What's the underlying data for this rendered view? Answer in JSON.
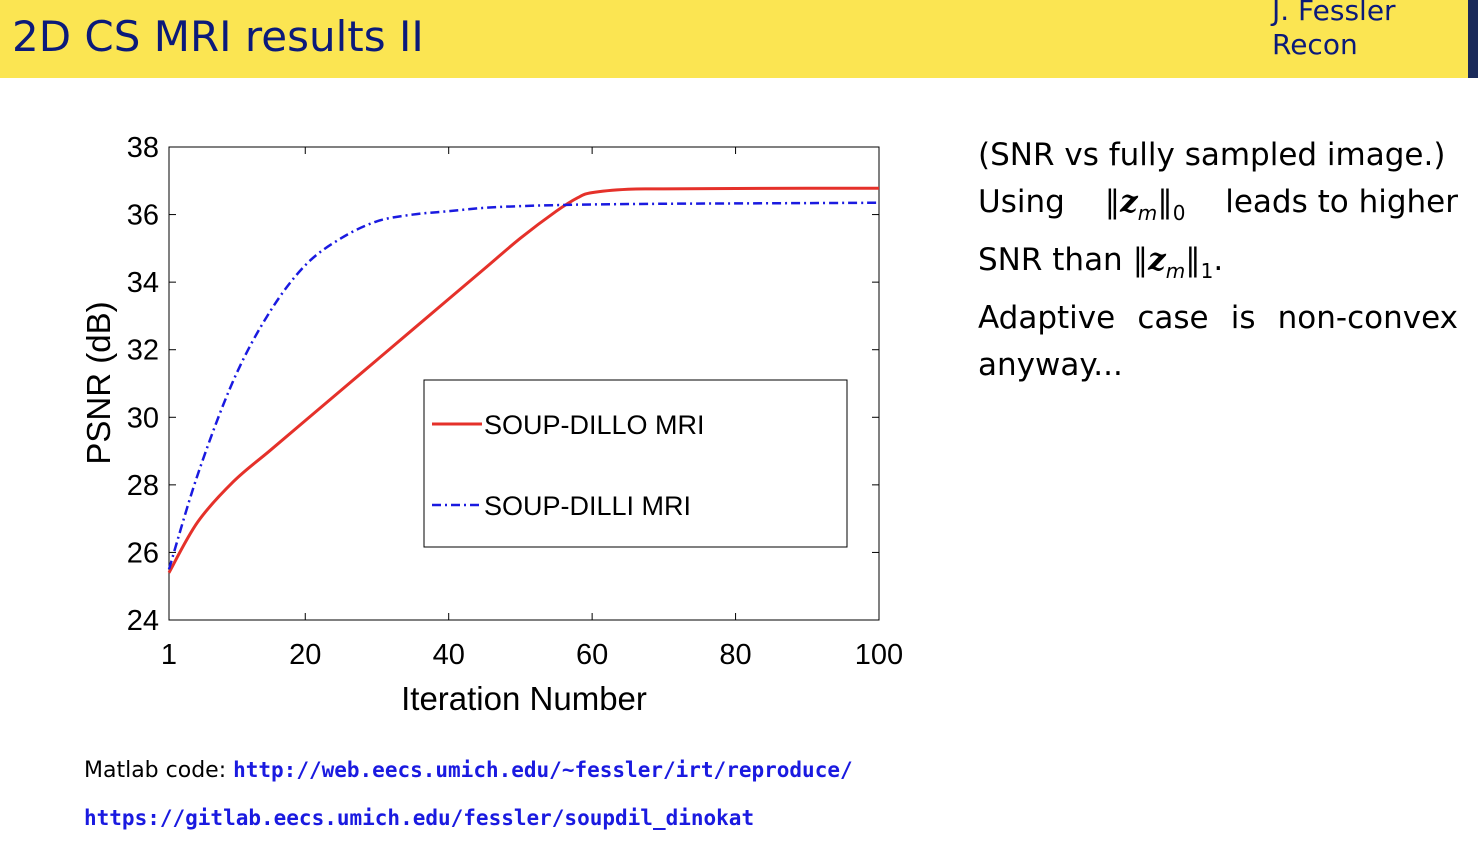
{
  "header": {
    "title": "2D CS MRI results II",
    "author": "J. Fessler",
    "section": "Recon",
    "colors": {
      "bar": "#fbe552",
      "text": "#0b1a7a"
    }
  },
  "text": {
    "line1": "(SNR vs fully sampled image.)",
    "line2_pre": "Using",
    "line2_post": "leads to higher",
    "line3_pre": "SNR than",
    "line4": "Adaptive case is non-convex",
    "line5": "anyway...",
    "norm_var": "z",
    "norm_sub": "m",
    "norm0_index": "0",
    "norm1_index": "1"
  },
  "footer": {
    "label": "Matlab code:",
    "link1": "http://web.eecs.umich.edu/~fessler/irt/reproduce/",
    "link2": "https://gitlab.eecs.umich.edu/fessler/soupdil_dinokat"
  },
  "chart_data": {
    "type": "line",
    "xlabel": "Iteration Number",
    "ylabel": "PSNR (dB)",
    "xlim": [
      1,
      100
    ],
    "ylim": [
      24,
      38
    ],
    "xticks": [
      1,
      20,
      40,
      60,
      80,
      100
    ],
    "yticks": [
      24,
      26,
      28,
      30,
      32,
      34,
      36,
      38
    ],
    "grid": false,
    "legend_position": "center-right",
    "series": [
      {
        "name": "SOUP-DILLO MRI",
        "color": "#e5312a",
        "style": "solid",
        "x": [
          1,
          5,
          10,
          15,
          20,
          25,
          30,
          35,
          40,
          45,
          50,
          55,
          58,
          60,
          65,
          70,
          80,
          90,
          100
        ],
        "y": [
          25.4,
          26.9,
          28.1,
          29.0,
          29.9,
          30.8,
          31.7,
          32.6,
          33.5,
          34.4,
          35.3,
          36.1,
          36.5,
          36.65,
          36.75,
          36.76,
          36.77,
          36.78,
          36.78
        ]
      },
      {
        "name": "SOUP-DILLI MRI",
        "color": "#1a1ae0",
        "style": "dashdot",
        "x": [
          1,
          5,
          10,
          15,
          20,
          25,
          30,
          35,
          40,
          45,
          50,
          55,
          60,
          70,
          80,
          90,
          100
        ],
        "y": [
          25.5,
          28.3,
          31.1,
          33.1,
          34.5,
          35.3,
          35.8,
          36.0,
          36.1,
          36.2,
          36.25,
          36.28,
          36.3,
          36.32,
          36.33,
          36.34,
          36.35
        ]
      }
    ]
  }
}
